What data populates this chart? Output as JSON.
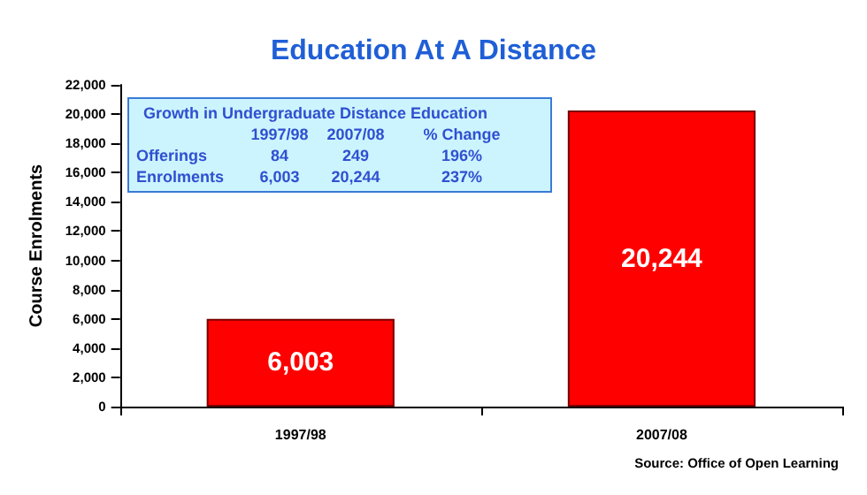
{
  "chart_data": {
    "type": "bar",
    "title": "Education At A Distance",
    "ylabel": "Course Enrolments",
    "categories": [
      "1997/98",
      "2007/08"
    ],
    "values": [
      6003,
      20244
    ],
    "color": "#ff0000",
    "value_labels": [
      "6,003",
      "20,244"
    ],
    "ylim": [
      0,
      22000
    ],
    "yticks": [
      {
        "value": 0,
        "label": "0"
      },
      {
        "value": 2000,
        "label": "2,000"
      },
      {
        "value": 4000,
        "label": "4,000"
      },
      {
        "value": 6000,
        "label": "6,000"
      },
      {
        "value": 8000,
        "label": "8,000"
      },
      {
        "value": 10000,
        "label": "10,000"
      },
      {
        "value": 12000,
        "label": "12,000"
      },
      {
        "value": 14000,
        "label": "14,000"
      },
      {
        "value": 16000,
        "label": "16,000"
      },
      {
        "value": 18000,
        "label": "18,000"
      },
      {
        "value": 20000,
        "label": "20,000"
      },
      {
        "value": 22000,
        "label": "22,000"
      }
    ],
    "grid": false,
    "annotations": [
      "Growth in Undergraduate Distance Education",
      "1997/98",
      "2007/08",
      "% Change",
      "Offerings",
      "84",
      "249",
      "196%",
      "Enrolments",
      "6,003",
      "20,244",
      "237%",
      "Source: Office of Open Learning"
    ]
  }
}
